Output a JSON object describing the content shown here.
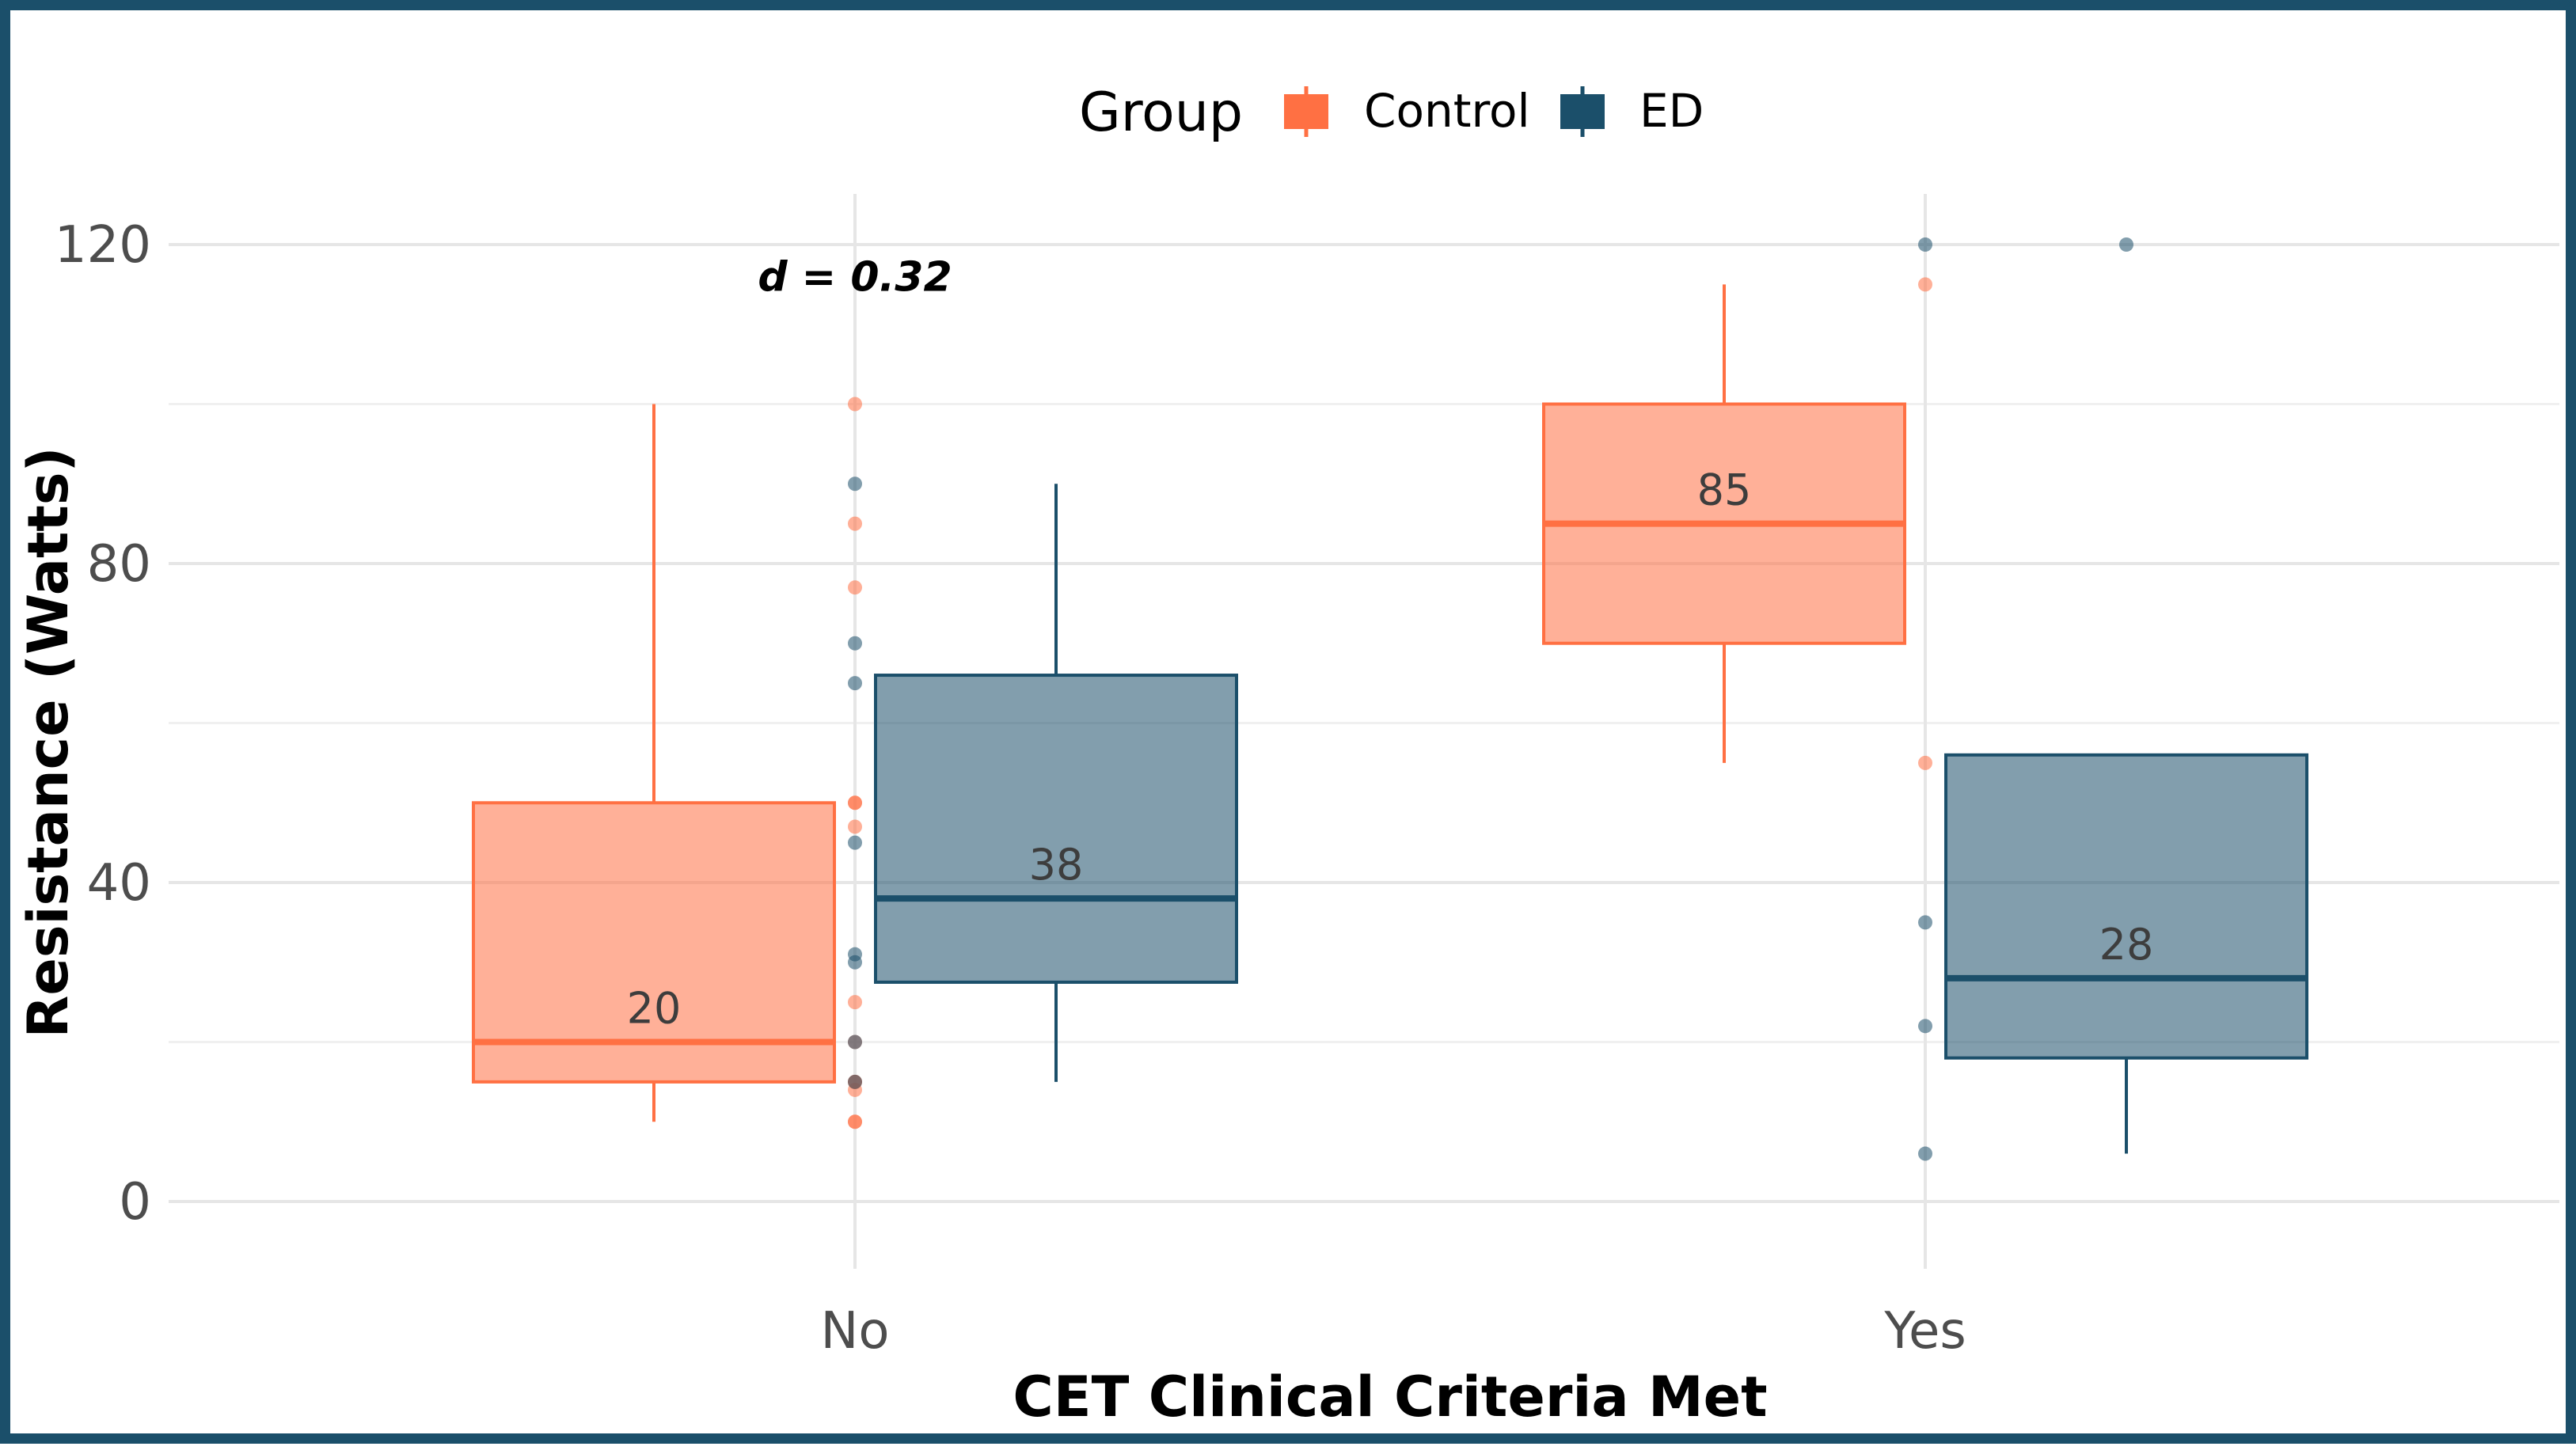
{
  "chart_data": {
    "type": "boxplot",
    "xlabel": "CET Clinical Criteria Met",
    "ylabel": "Resistance (Watts)",
    "ylim": [
      -15,
      125
    ],
    "yticks": [
      0,
      40,
      80,
      120
    ],
    "categories": [
      "No",
      "Yes"
    ],
    "legend": {
      "title": "Group",
      "position": "top",
      "entries": [
        "Control",
        "ED"
      ]
    },
    "grid": true,
    "series": [
      {
        "name": "Control",
        "color": "#ff7043",
        "boxes": [
          {
            "category": "No",
            "q1": 15,
            "median": 20,
            "q3": 50,
            "whisker_low": 10,
            "whisker_high": 100,
            "label": "20"
          },
          {
            "category": "Yes",
            "q1": 70,
            "median": 85,
            "q3": 100,
            "whisker_low": 55,
            "whisker_high": 115,
            "label": "85"
          }
        ],
        "points": [
          {
            "category": "No",
            "values": [
              100,
              85,
              77,
              50,
              50,
              47,
              25,
              20,
              15,
              15,
              14,
              10,
              10
            ]
          },
          {
            "category": "Yes",
            "values": [
              115,
              55
            ]
          }
        ]
      },
      {
        "name": "ED",
        "color": "#1b4f6a",
        "boxes": [
          {
            "category": "No",
            "q1": 27.5,
            "median": 38,
            "q3": 66,
            "whisker_low": 15,
            "whisker_high": 90,
            "label": "38"
          },
          {
            "category": "Yes",
            "q1": 18,
            "median": 28,
            "q3": 56,
            "whisker_low": 6,
            "whisker_high": 56,
            "label": "28",
            "outliers": [
              120
            ]
          }
        ],
        "points": [
          {
            "category": "No",
            "values": [
              90,
              70,
              65,
              45,
              31,
              30,
              20,
              15
            ]
          },
          {
            "category": "Yes",
            "values": [
              120,
              35,
              22,
              6
            ]
          }
        ]
      }
    ],
    "annotations": [
      {
        "category": "No",
        "text": "d = 0.32",
        "y": 116
      }
    ]
  }
}
